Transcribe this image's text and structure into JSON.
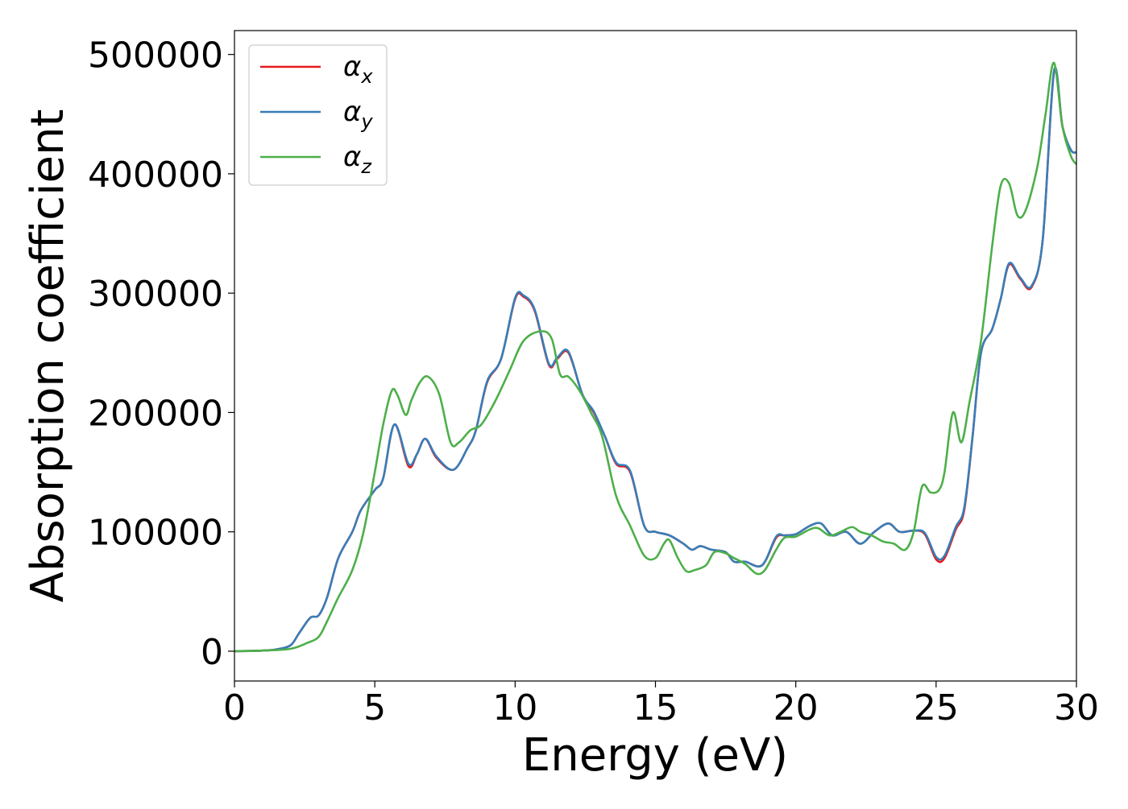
{
  "chart_data": {
    "type": "line",
    "title": "",
    "xlabel": "Energy (eV)",
    "ylabel": "Absorption coefficient",
    "xlim": [
      0,
      30
    ],
    "ylim": [
      -25000,
      520000
    ],
    "xticks": [
      0,
      5,
      10,
      15,
      20,
      25,
      30
    ],
    "yticks": [
      0,
      100000,
      200000,
      300000,
      400000,
      500000
    ],
    "xtick_labels": [
      "0",
      "5",
      "10",
      "15",
      "20",
      "25",
      "30"
    ],
    "ytick_labels": [
      "0",
      "100000",
      "200000",
      "300000",
      "400000",
      "500000"
    ],
    "grid": false,
    "legend_position": "top-left",
    "series": [
      {
        "name": "α_x",
        "label_main": "α",
        "label_sub": "x",
        "color": "#e41a1c",
        "x": [
          0,
          1,
          1.5,
          2,
          2.3,
          2.7,
          3,
          3.3,
          3.7,
          4.2,
          4.5,
          5,
          5.3,
          5.7,
          6.2,
          6.5,
          6.8,
          7.2,
          7.8,
          8.3,
          8.6,
          9,
          9.5,
          10,
          10.3,
          10.7,
          11.2,
          11.5,
          11.9,
          12.4,
          12.8,
          13.2,
          13.6,
          14.1,
          14.6,
          15,
          15.5,
          16,
          16.3,
          16.6,
          17,
          17.5,
          17.8,
          18.2,
          18.8,
          19.3,
          19.6,
          20,
          20.5,
          20.9,
          21.3,
          21.8,
          22.3,
          22.8,
          23.3,
          23.7,
          24.2,
          24.6,
          25,
          25.3,
          25.7,
          26,
          26.3,
          26.6,
          27,
          27.3,
          27.6,
          28,
          28.4,
          28.8,
          29.2,
          29.5,
          29.8,
          30
        ],
        "y": [
          0,
          500,
          1500,
          5000,
          15000,
          28000,
          30000,
          45000,
          78000,
          100000,
          118000,
          135000,
          145000,
          190000,
          155000,
          165000,
          178000,
          162000,
          152000,
          170000,
          185000,
          225000,
          245000,
          295000,
          297000,
          285000,
          240000,
          245000,
          250000,
          215000,
          200000,
          180000,
          157000,
          150000,
          105000,
          100000,
          97000,
          90000,
          85000,
          88000,
          85000,
          83000,
          75000,
          75000,
          72000,
          95000,
          97000,
          98000,
          105000,
          107000,
          97000,
          100000,
          90000,
          100000,
          107000,
          100000,
          101000,
          98000,
          77000,
          78000,
          102000,
          118000,
          180000,
          250000,
          270000,
          295000,
          324000,
          312000,
          305000,
          345000,
          485000,
          440000,
          420000,
          418000
        ]
      },
      {
        "name": "α_y",
        "label_main": "α",
        "label_sub": "y",
        "color": "#377eb8",
        "x": [
          0,
          1,
          1.5,
          2,
          2.3,
          2.7,
          3,
          3.3,
          3.7,
          4.2,
          4.5,
          5,
          5.3,
          5.7,
          6.2,
          6.5,
          6.8,
          7.2,
          7.8,
          8.3,
          8.6,
          9,
          9.5,
          10,
          10.3,
          10.7,
          11.2,
          11.5,
          11.9,
          12.4,
          12.8,
          13.2,
          13.6,
          14.1,
          14.6,
          15,
          15.5,
          16,
          16.3,
          16.6,
          17,
          17.5,
          17.8,
          18.2,
          18.8,
          19.3,
          19.6,
          20,
          20.5,
          20.9,
          21.3,
          21.8,
          22.3,
          22.8,
          23.3,
          23.7,
          24.2,
          24.6,
          25,
          25.3,
          25.7,
          26,
          26.3,
          26.6,
          27,
          27.3,
          27.6,
          28,
          28.4,
          28.8,
          29.2,
          29.5,
          29.8,
          30
        ],
        "y": [
          0,
          500,
          1500,
          5000,
          15000,
          28000,
          30000,
          45000,
          78000,
          100000,
          118000,
          135000,
          145000,
          190000,
          157000,
          165000,
          178000,
          163000,
          152000,
          170000,
          185000,
          226000,
          245000,
          296000,
          298000,
          286000,
          241000,
          246000,
          251000,
          215000,
          201000,
          180000,
          158000,
          151000,
          105000,
          100000,
          97000,
          90000,
          85000,
          88000,
          85000,
          83000,
          75000,
          75000,
          72000,
          96000,
          97000,
          98000,
          105000,
          107000,
          97000,
          100000,
          90000,
          100000,
          107000,
          100000,
          101000,
          99000,
          79000,
          80000,
          104000,
          120000,
          180000,
          250000,
          270000,
          295000,
          325000,
          313000,
          306000,
          345000,
          486000,
          440000,
          420000,
          418000
        ]
      },
      {
        "name": "α_z",
        "label_main": "α",
        "label_sub": "z",
        "color": "#4daf4a",
        "x": [
          0,
          1,
          2,
          2.6,
          3,
          3.3,
          3.7,
          4.2,
          4.6,
          5,
          5.3,
          5.6,
          5.8,
          6.1,
          6.3,
          6.6,
          6.9,
          7.3,
          7.7,
          8,
          8.4,
          8.8,
          9.3,
          9.8,
          10.3,
          10.9,
          11.3,
          11.6,
          11.9,
          12.3,
          12.7,
          13.1,
          13.6,
          14.1,
          14.6,
          15,
          15.3,
          15.5,
          15.8,
          16.1,
          16.4,
          16.8,
          17.1,
          17.5,
          17.8,
          18.2,
          18.6,
          18.9,
          19.3,
          19.6,
          20,
          20.5,
          20.8,
          21.2,
          21.6,
          22,
          22.3,
          22.7,
          23.1,
          23.5,
          23.9,
          24.2,
          24.5,
          24.8,
          25.1,
          25.3,
          25.6,
          25.9,
          26.2,
          26.6,
          27,
          27.3,
          27.6,
          27.9,
          28.2,
          28.6,
          28.9,
          29.2,
          29.5,
          29.8,
          30
        ],
        "y": [
          0,
          500,
          2000,
          7000,
          12000,
          25000,
          45000,
          68000,
          100000,
          150000,
          190000,
          218000,
          215000,
          198000,
          210000,
          225000,
          230000,
          215000,
          175000,
          175000,
          185000,
          190000,
          210000,
          235000,
          260000,
          268000,
          262000,
          232000,
          230000,
          218000,
          200000,
          180000,
          130000,
          105000,
          80000,
          78000,
          90000,
          93000,
          78000,
          67000,
          68000,
          72000,
          83000,
          82000,
          78000,
          73000,
          65000,
          68000,
          85000,
          95000,
          96000,
          102000,
          103000,
          97000,
          100000,
          104000,
          100000,
          97000,
          92000,
          90000,
          85000,
          100000,
          138000,
          133000,
          135000,
          150000,
          200000,
          175000,
          210000,
          260000,
          340000,
          390000,
          392000,
          365000,
          370000,
          405000,
          450000,
          493000,
          440000,
          415000,
          408000
        ]
      }
    ]
  }
}
